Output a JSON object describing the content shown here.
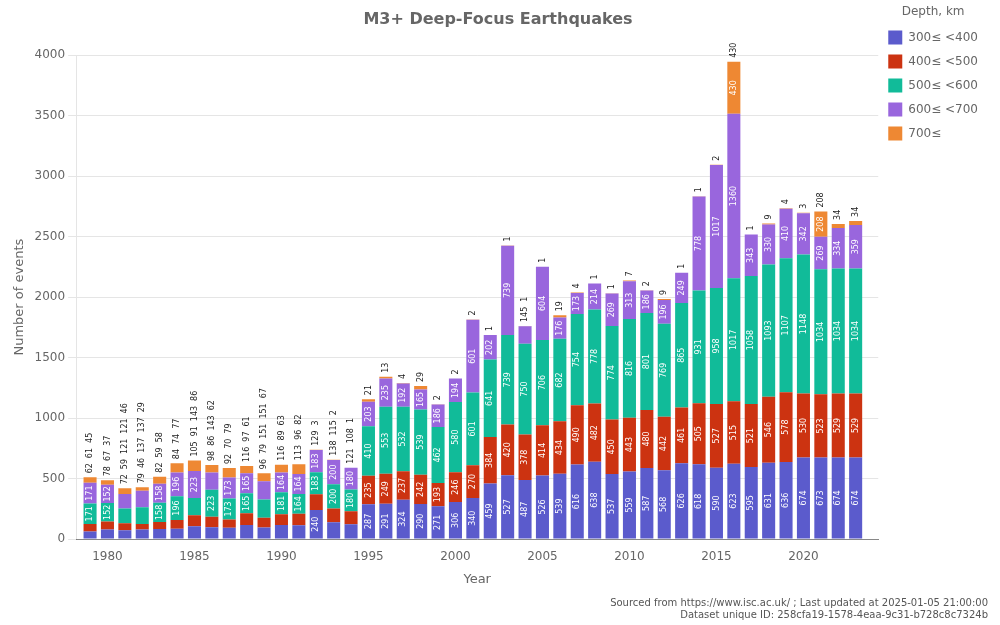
{
  "chart_data": {
    "type": "bar",
    "stacked": true,
    "title": "M3+ Deep-Focus Earthquakes",
    "xlabel": "Year",
    "ylabel": "Number of events",
    "legend_title": "Depth, km",
    "footnote": [
      "Sourced from https://www.isc.ac.uk/ ; Last updated at 2025-01-05 21:00:00",
      "Dataset unique ID: 258cfa19-1578-4eaa-9c31-b728c8c7324b"
    ],
    "x": [
      1979,
      1980,
      1981,
      1982,
      1983,
      1984,
      1985,
      1986,
      1987,
      1988,
      1989,
      1990,
      1991,
      1992,
      1993,
      1994,
      1995,
      1996,
      1997,
      1998,
      1999,
      2000,
      2001,
      2002,
      2003,
      2004,
      2005,
      2006,
      2007,
      2008,
      2009,
      2010,
      2011,
      2012,
      2013,
      2014,
      2015,
      2016,
      2017,
      2018,
      2019,
      2020,
      2021,
      2022,
      2023
    ],
    "xlim": [
      1978.2,
      2024.3
    ],
    "xticks": [
      1980,
      1985,
      1990,
      1995,
      2000,
      2005,
      2010,
      2015,
      2020
    ],
    "ylim": [
      0,
      4000
    ],
    "yticks": [
      0,
      500,
      1000,
      1500,
      2000,
      2500,
      3000,
      3500,
      4000
    ],
    "grid": "y",
    "legend": "upper right",
    "data_labels": true,
    "series": [
      {
        "name": "300≤ <400",
        "color": "#5b5bcc",
        "values": [
          62,
          78,
          72,
          79,
          82,
          84,
          105,
          98,
          92,
          116,
          96,
          116,
          113,
          240,
          138,
          121,
          287,
          291,
          324,
          290,
          271,
          306,
          340,
          459,
          527,
          487,
          526,
          539,
          616,
          638,
          537,
          559,
          587,
          568,
          626,
          618,
          590,
          623,
          595,
          631,
          636,
          674,
          673,
          674,
          674
        ]
      },
      {
        "name": "400≤ <500",
        "color": "#cc3311",
        "values": [
          61,
          67,
          59,
          46,
          59,
          74,
          91,
          86,
          70,
          97,
          79,
          89,
          96,
          129,
          115,
          108,
          235,
          249,
          237,
          242,
          193,
          246,
          270,
          384,
          420,
          378,
          414,
          434,
          490,
          482,
          450,
          443,
          480,
          442,
          461,
          505,
          527,
          515,
          521,
          546,
          578,
          530,
          523,
          529,
          529
        ]
      },
      {
        "name": "500≤ <600",
        "color": "#11bb99",
        "values": [
          171,
          152,
          121,
          137,
          158,
          196,
          143,
          223,
          173,
          165,
          151,
          181,
          164,
          183,
          200,
          180,
          410,
          553,
          532,
          539,
          462,
          580,
          601,
          641,
          739,
          750,
          706,
          682,
          754,
          778,
          774,
          816,
          801,
          769,
          865,
          931,
          958,
          1017,
          1058,
          1093,
          1107,
          1148,
          1034,
          1034,
          1034
        ]
      },
      {
        "name": "600≤ <700",
        "color": "#9966dd",
        "values": [
          171,
          152,
          121,
          137,
          158,
          196,
          223,
          143,
          173,
          165,
          151,
          164,
          164,
          183,
          200,
          180,
          203,
          235,
          192,
          165,
          186,
          194,
          601,
          202,
          739,
          145,
          604,
          176,
          173,
          214,
          269,
          313,
          186,
          196,
          249,
          778,
          1017,
          1360,
          343,
          330,
          410,
          342,
          269,
          334,
          359
        ]
      },
      {
        "name": "700≤",
        "color": "#ee8833",
        "values": [
          45,
          37,
          46,
          29,
          58,
          77,
          86,
          62,
          79,
          61,
          67,
          63,
          82,
          3,
          2,
          1,
          21,
          13,
          4,
          29,
          2,
          2,
          2,
          1,
          1,
          1,
          1,
          19,
          4,
          1,
          1,
          7,
          2,
          9,
          1,
          1,
          2,
          430,
          1,
          9,
          4,
          3,
          208,
          34,
          34
        ]
      }
    ]
  }
}
